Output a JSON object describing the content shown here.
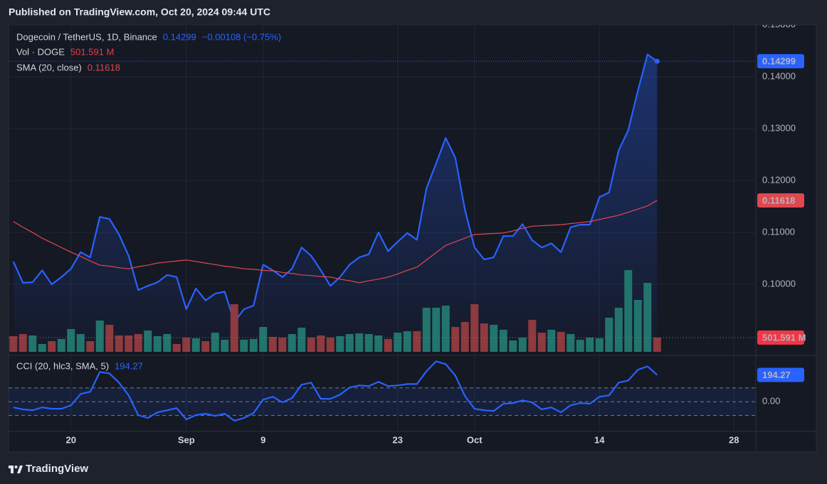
{
  "header": "Published on TradingView.com, Oct 20, 2024 09:44 UTC",
  "footer": "TradingView",
  "chart_data": [
    {
      "type": "line",
      "categories": [
        null,
        null,
        null,
        null,
        null,
        null,
        "20",
        null,
        null,
        null,
        null,
        null,
        null,
        null,
        null,
        null,
        null,
        null,
        "Sep",
        null,
        null,
        null,
        null,
        null,
        null,
        null,
        "9",
        null,
        null,
        null,
        null,
        null,
        null,
        null,
        null,
        null,
        null,
        null,
        null,
        null,
        "23",
        null,
        null,
        null,
        null,
        null,
        null,
        null,
        "Oct",
        null,
        null,
        null,
        null,
        null,
        null,
        null,
        null,
        null,
        null,
        null,
        null,
        "14",
        null,
        null,
        null,
        null,
        null,
        null,
        null,
        null,
        null,
        null,
        null,
        null,
        null,
        "28",
        null,
        null
      ],
      "ylim": [
        0.087,
        0.15
      ],
      "yticks": [
        {
          "value": 0.15,
          "label": "0.15000"
        },
        {
          "value": 0.14,
          "label": "0.14000"
        },
        {
          "value": 0.13,
          "label": "0.13000"
        },
        {
          "value": 0.12,
          "label": "0.12000"
        },
        {
          "value": 0.11,
          "label": "0.11000"
        },
        {
          "value": 0.1,
          "label": "0.10000"
        }
      ],
      "y2lim": [
        0,
        11540
      ],
      "grid": true,
      "change_label": "−0.00108 (−0.75%)",
      "series": [
        {
          "name": "Dogecoin / TetherUS, 1D, Binance",
          "color": "#2962ff",
          "fill_area": true,
          "values": [
            0.1044,
            0.1003,
            0.1004,
            0.1027,
            0.1,
            0.1014,
            0.103,
            0.1062,
            0.1052,
            0.113,
            0.1126,
            0.1096,
            0.1055,
            0.0989,
            0.0997,
            0.1004,
            0.1018,
            0.1014,
            0.0952,
            0.0992,
            0.0969,
            0.0982,
            0.0986,
            0.0927,
            0.0952,
            0.0959,
            0.1038,
            0.1027,
            0.1014,
            0.103,
            0.1071,
            0.1055,
            0.1027,
            0.0997,
            0.1014,
            0.1038,
            0.1052,
            0.1058,
            0.11,
            0.1064,
            0.1082,
            0.1099,
            0.1086,
            0.1185,
            0.1233,
            0.1282,
            0.1244,
            0.1144,
            0.1071,
            0.1048,
            0.1052,
            0.1093,
            0.1093,
            0.1116,
            0.1085,
            0.1071,
            0.1079,
            0.1062,
            0.111,
            0.1115,
            0.1115,
            0.1168,
            0.1177,
            0.1258,
            0.1297,
            0.1373,
            0.1443,
            0.14299,
            null,
            null,
            null,
            null,
            null,
            null,
            null,
            null,
            null,
            null
          ]
        },
        {
          "name": "Vol · DOGE",
          "type": "bar",
          "axis": "y2",
          "color": "#f23645",
          "up_color": "#22756d",
          "down_color": "#8e3a3f",
          "values": [
            552,
            627,
            577,
            276,
            376,
            451,
            803,
            627,
            376,
            1104,
            953,
            577,
            577,
            627,
            752,
            552,
            627,
            276,
            502,
            477,
            376,
            677,
            426,
            1680,
            426,
            451,
            878,
            527,
            502,
            627,
            853,
            502,
            577,
            502,
            552,
            627,
            652,
            627,
            577,
            451,
            677,
            727,
            727,
            1555,
            1555,
            1630,
            878,
            1053,
            1680,
            1003,
            953,
            777,
            401,
            502,
            1129,
            677,
            777,
            702,
            627,
            426,
            502,
            477,
            1204,
            1555,
            2884,
            1831,
            2433,
            501.591,
            null,
            null,
            null,
            null,
            null,
            null,
            null,
            null,
            null,
            null
          ],
          "value_labels": [
            null,
            null,
            null,
            null,
            null,
            null,
            null,
            null,
            null,
            null,
            null,
            null,
            null,
            null,
            null,
            null,
            null,
            null,
            null,
            null,
            null,
            null,
            null,
            null,
            null,
            null,
            null,
            null,
            null,
            null,
            null,
            null,
            null,
            null,
            null,
            null,
            null,
            null,
            null,
            null,
            null,
            null,
            null,
            null,
            null,
            null,
            null,
            null,
            null,
            null,
            null,
            null,
            null,
            null,
            null,
            null,
            null,
            null,
            null,
            null,
            null,
            null,
            null,
            null,
            null,
            null,
            null,
            "501.591 M",
            null,
            null,
            null,
            null,
            null,
            null,
            null,
            null,
            null,
            null
          ]
        },
        {
          "name": "SMA (20, close)",
          "color": "#e0474f",
          "values": [
            0.1121,
            0.111,
            0.11,
            0.1089,
            0.108,
            0.1071,
            0.1062,
            0.1054,
            0.1045,
            0.1037,
            0.1035,
            0.1032,
            0.103,
            0.1034,
            0.1037,
            0.1041,
            0.1043,
            0.1045,
            0.1047,
            0.1044,
            0.1041,
            0.1038,
            0.1035,
            0.1033,
            0.103,
            0.1029,
            0.1027,
            0.1026,
            0.1023,
            0.1021,
            0.1018,
            0.1017,
            0.1015,
            0.1014,
            0.101,
            0.1007,
            0.1003,
            0.1007,
            0.101,
            0.1014,
            0.102,
            0.1027,
            0.1033,
            0.1047,
            0.1061,
            0.1075,
            0.1082,
            0.1089,
            0.1096,
            0.1097,
            0.1098,
            0.1099,
            0.1103,
            0.1108,
            0.1112,
            0.1113,
            0.1114,
            0.1115,
            0.1117,
            0.1119,
            0.1121,
            0.1125,
            0.1129,
            0.1133,
            0.1139,
            0.1145,
            0.1151,
            0.11618,
            null,
            null,
            null,
            null,
            null,
            null,
            null,
            null,
            null,
            null
          ]
        }
      ]
    },
    {
      "type": "line",
      "ylim": [
        -210,
        310
      ],
      "yticks": [
        {
          "value": 0,
          "label": "0.00"
        }
      ],
      "band": [
        -100,
        100
      ],
      "series": [
        {
          "name": "CCI (20, hlc3, SMA, 5)",
          "color": "#2962ff",
          "values": [
            -41,
            -56,
            -62,
            -41,
            -51,
            -51,
            -26,
            56,
            72,
            215,
            205,
            138,
            46,
            -97,
            -118,
            -77,
            -62,
            -46,
            -128,
            -97,
            -87,
            -103,
            -87,
            -138,
            -118,
            -82,
            15,
            36,
            -5,
            26,
            123,
            138,
            21,
            21,
            51,
            103,
            118,
            113,
            144,
            113,
            118,
            128,
            128,
            221,
            292,
            272,
            190,
            41,
            -51,
            -62,
            -67,
            -15,
            -10,
            10,
            -5,
            -56,
            -41,
            -77,
            -26,
            -10,
            -15,
            36,
            46,
            138,
            154,
            231,
            256,
            194.27,
            null,
            null,
            null,
            null,
            null,
            null,
            null,
            null,
            null,
            null
          ]
        }
      ]
    }
  ]
}
